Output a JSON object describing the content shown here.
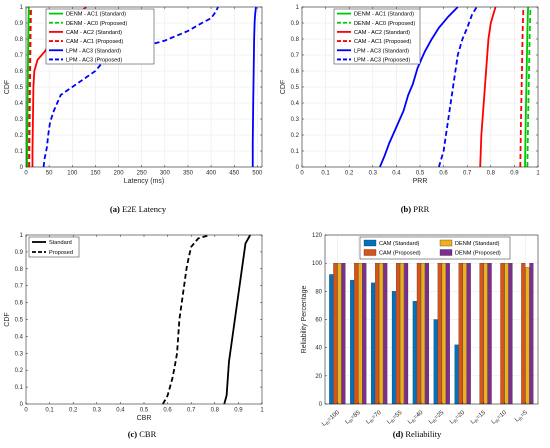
{
  "chart_data": [
    {
      "type": "line",
      "caption_tag": "(a)",
      "caption_text": " E2E Latency",
      "xlabel": "Latency (ms)",
      "ylabel": "CDF",
      "xlim": [
        0,
        510
      ],
      "ylim": [
        0,
        1
      ],
      "xticks": [
        0,
        50,
        100,
        150,
        200,
        250,
        300,
        350,
        400,
        450,
        500
      ],
      "yticks": [
        0,
        0.1,
        0.2,
        0.3,
        0.4,
        0.5,
        0.6,
        0.7,
        0.8,
        0.9,
        1
      ],
      "grid": true,
      "legend": "top-center",
      "series": [
        {
          "name": "DENM - AC1 (Standard)",
          "color": "#00c800",
          "dash": "solid",
          "points": [
            [
              2,
              0
            ],
            [
              3,
              0.3
            ],
            [
              4,
              0.6
            ],
            [
              5,
              0.85
            ],
            [
              6,
              1
            ]
          ]
        },
        {
          "name": "DENM - AC0 (Proposed)",
          "color": "#00c800",
          "dash": "dashed",
          "points": [
            [
              4,
              0
            ],
            [
              5,
              0.3
            ],
            [
              6,
              0.6
            ],
            [
              7,
              0.85
            ],
            [
              8,
              1
            ]
          ]
        },
        {
          "name": "CAM - AC2 (Standard)",
          "color": "#ff0000",
          "dash": "solid",
          "points": [
            [
              14,
              0
            ],
            [
              14,
              0.1
            ],
            [
              15,
              0.3
            ],
            [
              16,
              0.5
            ],
            [
              18,
              0.6
            ],
            [
              25,
              0.67
            ],
            [
              40,
              0.72
            ],
            [
              55,
              0.78
            ],
            [
              70,
              0.85
            ],
            [
              90,
              0.9
            ],
            [
              110,
              0.95
            ],
            [
              130,
              1
            ]
          ]
        },
        {
          "name": "CAM - AC1 (Proposed)",
          "color": "#ff0000",
          "dash": "dashed",
          "points": [
            [
              7,
              0
            ],
            [
              8,
              0.3
            ],
            [
              9,
              0.6
            ],
            [
              10,
              0.85
            ],
            [
              11,
              1
            ]
          ]
        },
        {
          "name": "LPM - AC3 (Standard)",
          "color": "#0000ff",
          "dash": "solid",
          "points": [
            [
              490,
              0
            ],
            [
              490,
              0.15
            ],
            [
              491,
              0.4
            ],
            [
              492,
              0.6
            ],
            [
              493,
              0.8
            ],
            [
              494,
              0.9
            ],
            [
              495,
              0.95
            ],
            [
              497,
              1
            ]
          ]
        },
        {
          "name": "LPM - AC3 (Proposed)",
          "color": "#0000ff",
          "dash": "dashed",
          "points": [
            [
              38,
              0
            ],
            [
              40,
              0.05
            ],
            [
              45,
              0.12
            ],
            [
              48,
              0.2
            ],
            [
              52,
              0.28
            ],
            [
              60,
              0.35
            ],
            [
              75,
              0.45
            ],
            [
              100,
              0.5
            ],
            [
              125,
              0.55
            ],
            [
              150,
              0.6
            ],
            [
              170,
              0.67
            ],
            [
              200,
              0.71
            ],
            [
              250,
              0.75
            ],
            [
              300,
              0.79
            ],
            [
              350,
              0.85
            ],
            [
              380,
              0.9
            ],
            [
              400,
              0.93
            ],
            [
              410,
              0.97
            ],
            [
              415,
              1
            ]
          ]
        }
      ]
    },
    {
      "type": "line",
      "caption_tag": "(b)",
      "caption_text": " PRR",
      "xlabel": "PRR",
      "ylabel": "CDF",
      "xlim": [
        0,
        1
      ],
      "ylim": [
        0,
        1
      ],
      "xticks": [
        0,
        0.1,
        0.2,
        0.3,
        0.4,
        0.5,
        0.6,
        0.7,
        0.8,
        0.9,
        1
      ],
      "yticks": [
        0,
        0.1,
        0.2,
        0.3,
        0.4,
        0.5,
        0.6,
        0.7,
        0.8,
        0.9,
        1
      ],
      "grid": true,
      "legend": "top-left",
      "series": [
        {
          "name": "DENM - AC1 (Standard)",
          "color": "#00c800",
          "dash": "solid",
          "points": [
            [
              0.945,
              0
            ],
            [
              0.948,
              0.3
            ],
            [
              0.952,
              0.6
            ],
            [
              0.955,
              0.85
            ],
            [
              0.958,
              1
            ]
          ]
        },
        {
          "name": "DENM - AC0 (Proposed)",
          "color": "#00c800",
          "dash": "dashed",
          "points": [
            [
              0.955,
              0
            ],
            [
              0.958,
              0.3
            ],
            [
              0.962,
              0.6
            ],
            [
              0.965,
              0.85
            ],
            [
              0.968,
              1
            ]
          ]
        },
        {
          "name": "CAM - AC2 (Standard)",
          "color": "#ff0000",
          "dash": "solid",
          "points": [
            [
              0.755,
              0
            ],
            [
              0.76,
              0.2
            ],
            [
              0.77,
              0.4
            ],
            [
              0.78,
              0.6
            ],
            [
              0.79,
              0.8
            ],
            [
              0.8,
              0.9
            ],
            [
              0.82,
              1
            ]
          ]
        },
        {
          "name": "CAM - AC1 (Proposed)",
          "color": "#ff0000",
          "dash": "dashed",
          "points": [
            [
              0.925,
              0
            ],
            [
              0.928,
              0.3
            ],
            [
              0.932,
              0.6
            ],
            [
              0.935,
              0.85
            ],
            [
              0.938,
              1
            ]
          ]
        },
        {
          "name": "LPM - AC3 (Standard)",
          "color": "#0000ff",
          "dash": "solid",
          "points": [
            [
              0.33,
              0
            ],
            [
              0.35,
              0.07
            ],
            [
              0.37,
              0.15
            ],
            [
              0.4,
              0.25
            ],
            [
              0.43,
              0.35
            ],
            [
              0.45,
              0.45
            ],
            [
              0.47,
              0.52
            ],
            [
              0.49,
              0.62
            ],
            [
              0.52,
              0.72
            ],
            [
              0.55,
              0.8
            ],
            [
              0.58,
              0.87
            ],
            [
              0.62,
              0.94
            ],
            [
              0.66,
              1
            ]
          ]
        },
        {
          "name": "LPM - AC3 (Proposed)",
          "color": "#0000ff",
          "dash": "dashed",
          "points": [
            [
              0.58,
              0
            ],
            [
              0.6,
              0.1
            ],
            [
              0.61,
              0.2
            ],
            [
              0.62,
              0.3
            ],
            [
              0.63,
              0.4
            ],
            [
              0.64,
              0.5
            ],
            [
              0.65,
              0.6
            ],
            [
              0.66,
              0.7
            ],
            [
              0.68,
              0.8
            ],
            [
              0.7,
              0.87
            ],
            [
              0.72,
              0.95
            ],
            [
              0.74,
              1
            ]
          ]
        }
      ]
    },
    {
      "type": "line",
      "caption_tag": "(c)",
      "caption_text": " CBR",
      "xlabel": "CBR",
      "ylabel": "CDF",
      "xlim": [
        0,
        1
      ],
      "ylim": [
        0,
        1
      ],
      "xticks": [
        0,
        0.1,
        0.2,
        0.3,
        0.4,
        0.5,
        0.6,
        0.7,
        0.8,
        0.9,
        1
      ],
      "yticks": [
        0,
        0.1,
        0.2,
        0.3,
        0.4,
        0.5,
        0.6,
        0.7,
        0.8,
        0.9,
        1
      ],
      "grid": false,
      "legend": "top-left",
      "series": [
        {
          "name": "Standard",
          "color": "#000000",
          "dash": "solid",
          "points": [
            [
              0.84,
              0
            ],
            [
              0.85,
              0.05
            ],
            [
              0.855,
              0.15
            ],
            [
              0.86,
              0.25
            ],
            [
              0.87,
              0.35
            ],
            [
              0.88,
              0.45
            ],
            [
              0.89,
              0.55
            ],
            [
              0.9,
              0.65
            ],
            [
              0.91,
              0.75
            ],
            [
              0.92,
              0.85
            ],
            [
              0.93,
              0.95
            ],
            [
              0.95,
              1
            ]
          ]
        },
        {
          "name": "Proposed",
          "color": "#000000",
          "dash": "dashed",
          "points": [
            [
              0.58,
              0
            ],
            [
              0.6,
              0.05
            ],
            [
              0.61,
              0.1
            ],
            [
              0.62,
              0.15
            ],
            [
              0.63,
              0.22
            ],
            [
              0.64,
              0.3
            ],
            [
              0.645,
              0.4
            ],
            [
              0.65,
              0.5
            ],
            [
              0.66,
              0.6
            ],
            [
              0.67,
              0.7
            ],
            [
              0.68,
              0.8
            ],
            [
              0.69,
              0.87
            ],
            [
              0.7,
              0.93
            ],
            [
              0.73,
              0.98
            ],
            [
              0.78,
              1
            ]
          ]
        }
      ]
    },
    {
      "type": "bar",
      "caption_tag": "(d)",
      "caption_text": " Reliability",
      "xlabel": "",
      "ylabel": "Reliability Percentage",
      "ylim": [
        0,
        120
      ],
      "yticks": [
        0,
        20,
        40,
        60,
        80,
        100,
        120
      ],
      "grid": true,
      "legend": "top",
      "categories": [
        {
          "main": "L",
          "sub": "th",
          "rest": "=100"
        },
        {
          "main": "L",
          "sub": "th",
          "rest": "=85"
        },
        {
          "main": "L",
          "sub": "th",
          "rest": "=70"
        },
        {
          "main": "L",
          "sub": "th",
          "rest": "=55"
        },
        {
          "main": "L",
          "sub": "th",
          "rest": "=40"
        },
        {
          "main": "L",
          "sub": "th",
          "rest": "=25"
        },
        {
          "main": "L",
          "sub": "th",
          "rest": "=20"
        },
        {
          "main": "L",
          "sub": "th",
          "rest": "=15"
        },
        {
          "main": "L",
          "sub": "th",
          "rest": "=10"
        },
        {
          "main": "L",
          "sub": "th",
          "rest": "=5"
        }
      ],
      "series": [
        {
          "name": "CAM (Standard)",
          "color": "#0072bd",
          "values": [
            92,
            88,
            86,
            80,
            73,
            60,
            42,
            0,
            0,
            0
          ]
        },
        {
          "name": "CAM (Proposed)",
          "color": "#d95319",
          "values": [
            100,
            100,
            100,
            100,
            100,
            100,
            100,
            100,
            100,
            100
          ]
        },
        {
          "name": "DENM (Standard)",
          "color": "#edb120",
          "values": [
            100,
            100,
            100,
            100,
            100,
            100,
            100,
            100,
            100,
            97
          ]
        },
        {
          "name": "DENM (Proposed)",
          "color": "#7e2f8e",
          "values": [
            100,
            100,
            100,
            100,
            100,
            100,
            100,
            100,
            100,
            100
          ]
        }
      ]
    }
  ]
}
